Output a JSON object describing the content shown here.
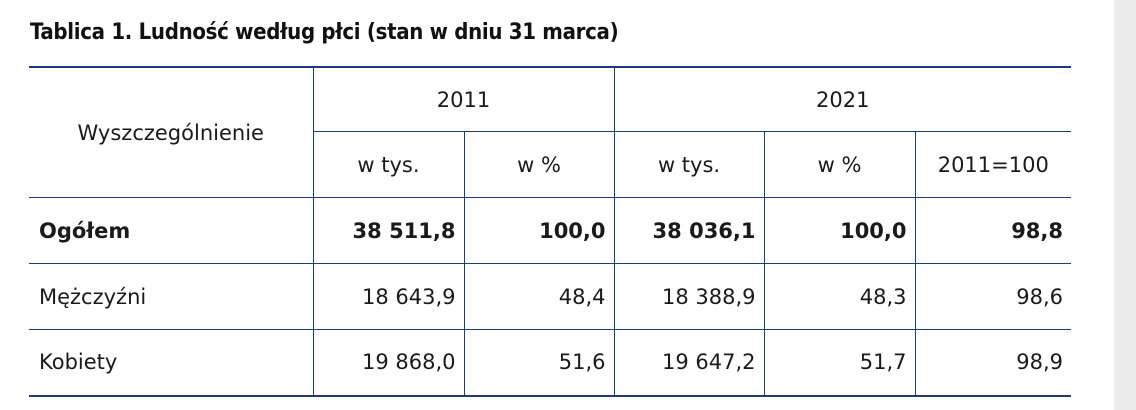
{
  "title": "Tablica 1. Ludność według płci (stan w dniu 31 marca)",
  "table": {
    "stub_header": "Wyszczególnienie",
    "years": [
      "2011",
      "2021"
    ],
    "sub_headers": [
      "w tys.",
      "w %",
      "w tys.",
      "w %",
      "2011=100"
    ],
    "rows": [
      {
        "label": "Ogółem",
        "values": [
          "38 511,8",
          "100,0",
          "38 036,1",
          "100,0",
          "98,8"
        ]
      },
      {
        "label": "Mężczyźni",
        "values": [
          "18 643,9",
          "48,4",
          "18 388,9",
          "48,3",
          "98,6"
        ]
      },
      {
        "label": "Kobiety",
        "values": [
          "19 868,0",
          "51,6",
          "19 647,2",
          "51,7",
          "98,9"
        ]
      }
    ]
  }
}
